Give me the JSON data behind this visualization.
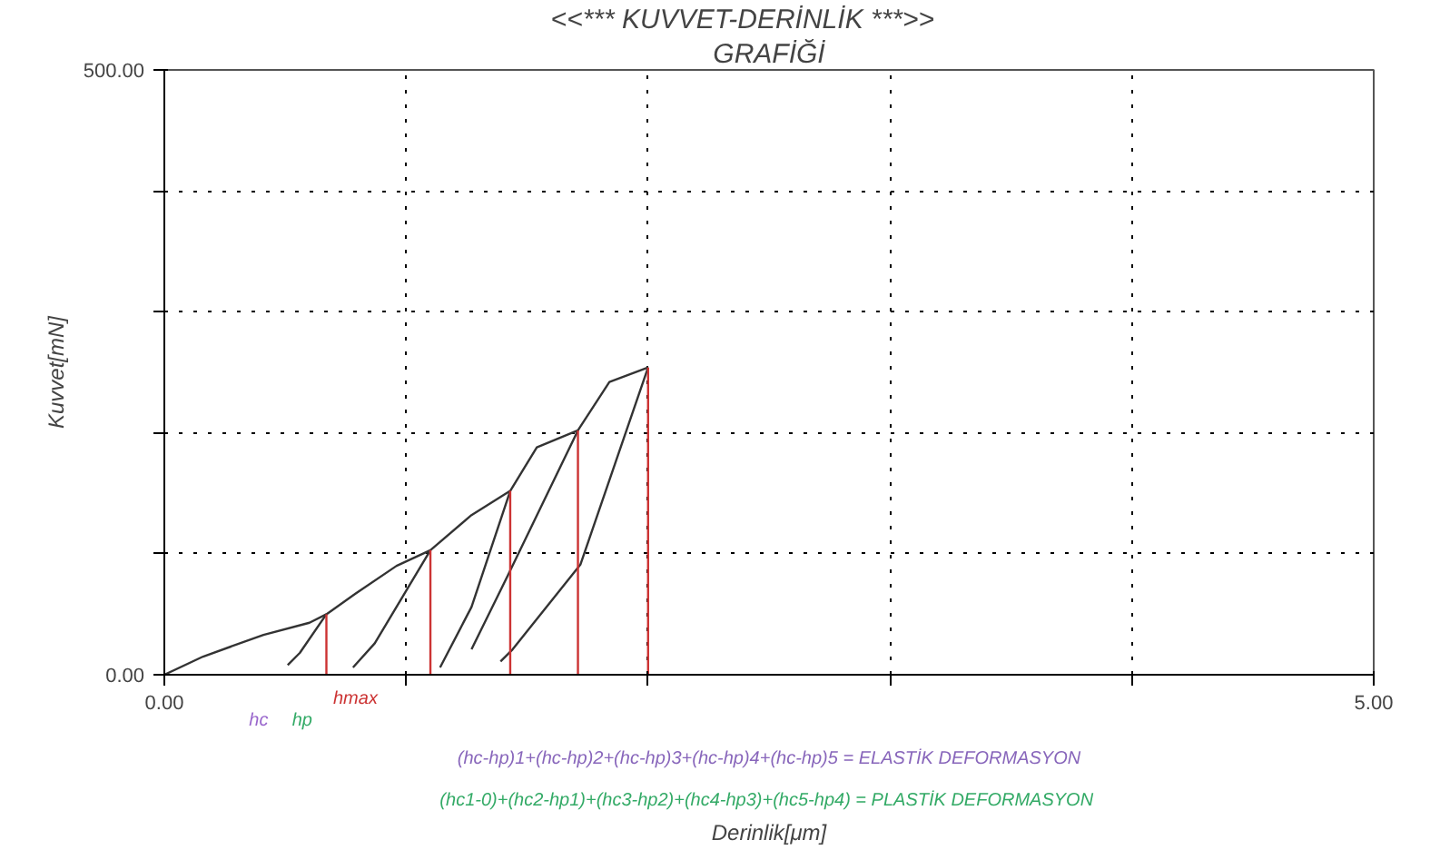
{
  "chart_data": {
    "type": "line",
    "title": "<<***   KUVVET-DERİNLİK      ***>>",
    "subtitle": "GRAFİĞİ",
    "xlabel": "Derinlik[μm]",
    "ylabel": "Kuvvet[mN]",
    "xlim": [
      0,
      5
    ],
    "ylim": [
      0,
      500
    ],
    "xticks": [
      {
        "value": 0,
        "label": "0.00"
      },
      {
        "value": 1,
        "label": null
      },
      {
        "value": 2,
        "label": null
      },
      {
        "value": 3,
        "label": null
      },
      {
        "value": 4,
        "label": null
      },
      {
        "value": 5,
        "label": "5.00"
      }
    ],
    "yticks": [
      {
        "value": 0,
        "label": "0.00"
      },
      {
        "value": 100,
        "label": null
      },
      {
        "value": 200,
        "label": null
      },
      {
        "value": 300,
        "label": null
      },
      {
        "value": 400,
        "label": null
      },
      {
        "value": 500,
        "label": "500.00"
      }
    ],
    "grid": true,
    "line_style": "solid",
    "marker": "none",
    "series": [
      {
        "color": "#333333",
        "x": [
          0,
          0.16,
          0.41,
          0.6,
          0.67,
          0.79,
          0.96,
          1.1,
          1.27,
          1.43,
          1.54,
          1.71,
          1.84,
          2.0
        ],
        "values": [
          0,
          15,
          33,
          43,
          50,
          67,
          90,
          103,
          132,
          152,
          188,
          202,
          242,
          254
        ]
      },
      {
        "color": "#333333",
        "x": [
          0.67,
          0.56,
          0.51
        ],
        "values": [
          50,
          18,
          8
        ]
      },
      {
        "color": "#333333",
        "x": [
          1.1,
          0.87,
          0.78
        ],
        "values": [
          103,
          26,
          6
        ]
      },
      {
        "color": "#333333",
        "x": [
          1.43,
          1.27,
          1.14
        ],
        "values": [
          152,
          56,
          6
        ]
      },
      {
        "color": "#333333",
        "x": [
          1.71,
          1.42,
          1.27
        ],
        "values": [
          202,
          82,
          21
        ]
      },
      {
        "color": "#333333",
        "x": [
          2.0,
          1.72,
          1.44,
          1.39
        ],
        "values": [
          254,
          91,
          21,
          11
        ]
      },
      {
        "color": "#cc3333",
        "x": [
          0.67,
          0.67
        ],
        "values": [
          0,
          50
        ]
      },
      {
        "color": "#cc3333",
        "x": [
          1.1,
          1.1
        ],
        "values": [
          0,
          103
        ]
      },
      {
        "color": "#cc3333",
        "x": [
          1.43,
          1.43
        ],
        "values": [
          0,
          152
        ]
      },
      {
        "color": "#cc3333",
        "x": [
          1.71,
          1.71
        ],
        "values": [
          0,
          202
        ]
      },
      {
        "color": "#cc3333",
        "x": [
          2.0,
          2.0
        ],
        "values": [
          0,
          254
        ]
      }
    ],
    "annotations": [
      "hc",
      "hp",
      "hmax",
      "(hc-hp)1+(hc-hp)2+(hc-hp)3+(hc-hp)4+(hc-hp)5 = ELASTİK DEFORMASYON",
      "(hc1-0)+(hc2-hp1)+(hc3-hp2)+(hc4-hp3)+(hc5-hp4)  = PLASTİK DEFORMASYON"
    ]
  }
}
